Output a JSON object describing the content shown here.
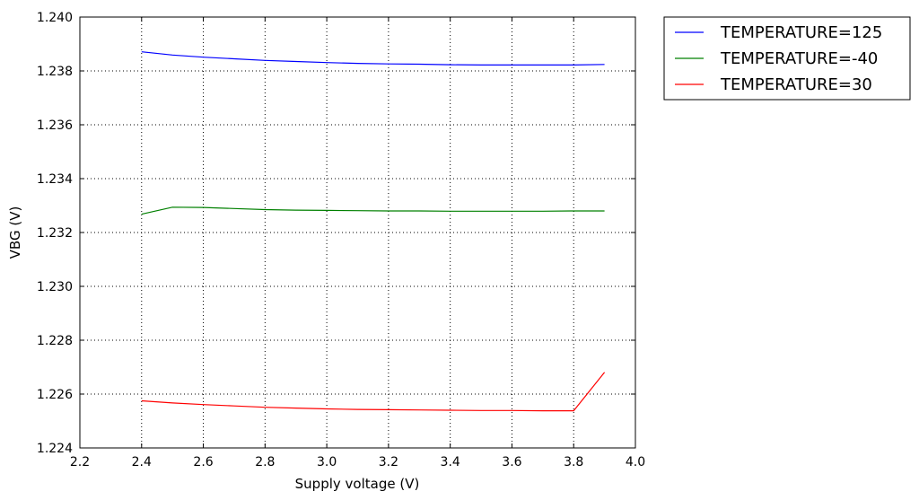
{
  "chart_data": {
    "type": "line",
    "xlabel": "Supply voltage (V)",
    "ylabel": "VBG (V)",
    "xlim": [
      2.2,
      4.0
    ],
    "ylim": [
      1.224,
      1.24
    ],
    "xticks": [
      "2.2",
      "2.4",
      "2.6",
      "2.8",
      "3.0",
      "3.2",
      "3.4",
      "3.6",
      "3.8",
      "4.0"
    ],
    "yticks": [
      "1.224",
      "1.226",
      "1.228",
      "1.230",
      "1.232",
      "1.234",
      "1.236",
      "1.238",
      "1.240"
    ],
    "grid": true,
    "legend_position": "outside top-right",
    "x": [
      2.4,
      2.5,
      2.6,
      2.7,
      2.8,
      2.9,
      3.0,
      3.1,
      3.2,
      3.3,
      3.4,
      3.5,
      3.6,
      3.7,
      3.8,
      3.9
    ],
    "series": [
      {
        "name": "TEMPERATURE=125",
        "color": "#0000ff",
        "values": [
          1.23871,
          1.23859,
          1.23851,
          1.23845,
          1.23839,
          1.23835,
          1.23831,
          1.23828,
          1.23826,
          1.23825,
          1.23823,
          1.23822,
          1.23822,
          1.23822,
          1.23822,
          1.23824
        ]
      },
      {
        "name": "TEMPERATURE=-40",
        "color": "#008000",
        "values": [
          1.23268,
          1.23294,
          1.23293,
          1.23289,
          1.23285,
          1.23283,
          1.23282,
          1.23281,
          1.2328,
          1.2328,
          1.23279,
          1.23279,
          1.23279,
          1.23279,
          1.2328,
          1.2328
        ]
      },
      {
        "name": "TEMPERATURE=30",
        "color": "#ff0000",
        "values": [
          1.22575,
          1.22567,
          1.22561,
          1.22556,
          1.22551,
          1.22548,
          1.22545,
          1.22543,
          1.22542,
          1.22541,
          1.2254,
          1.22539,
          1.22539,
          1.22538,
          1.22538,
          1.22681
        ]
      }
    ]
  }
}
